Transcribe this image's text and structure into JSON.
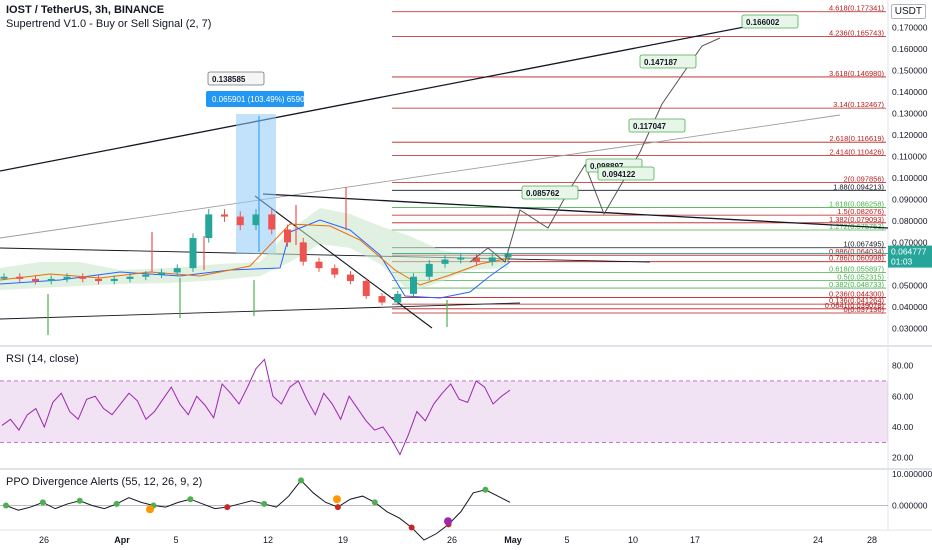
{
  "header": {
    "symbol": "IOST / TetherUS, 3h, BINANCE",
    "indicator": "Supertrend V1.0 - Buy or Sell Signal (2, 7)",
    "unit": "USDT",
    "rsi_title": "RSI (14, close)",
    "ppo_title": "PPO Divergence Alerts (55, 12, 26, 9, 2)"
  },
  "price_badge": {
    "price": "0.064777",
    "countdown": "01:03",
    "color": "#26a69a"
  },
  "measure_box": {
    "label": "0.065901 (103.49%) 65901",
    "color": "#2196f3"
  },
  "colors": {
    "fib_red": "#b71c1c",
    "fib_green": "#4caf50",
    "candle_up": "#26a69a",
    "candle_down": "#ef5350",
    "rsi": "#9c27b0",
    "rsi_band": "#e1bee7"
  },
  "chart_data": [
    {
      "type": "line",
      "title": "IOST / TetherUS, 3h, BINANCE",
      "x_ticks": [
        "26",
        "Apr",
        "5",
        "12",
        "19",
        "26",
        "May",
        "5",
        "10",
        "17",
        "24",
        "28"
      ],
      "y_ticks": [
        "0.170000",
        "0.160000",
        "0.150000",
        "0.140000",
        "0.130000",
        "0.120000",
        "0.110000",
        "0.100000",
        "0.090000",
        "0.080000",
        "0.070000",
        "0.050000",
        "0.040000",
        "0.030000"
      ],
      "ylim": [
        0.026,
        0.18
      ],
      "scale": "linear",
      "series": [
        {
          "values_approx": [
            0.054,
            0.053,
            0.052,
            0.053,
            0.054,
            0.053,
            0.052,
            0.053,
            0.054,
            0.055,
            0.056,
            0.058,
            0.072,
            0.083,
            0.082,
            0.078,
            0.083,
            0.076,
            0.07,
            0.061,
            0.058,
            0.055,
            0.052,
            0.045,
            0.042,
            0.046,
            0.054,
            0.06,
            0.062,
            0.063,
            0.061,
            0.063,
            0.0648
          ]
        }
      ],
      "fib_levels": [
        {
          "label": "4.618(0.177341)",
          "value": 0.177341,
          "color": "red"
        },
        {
          "label": "4.236(0.165743)",
          "value": 0.165743,
          "color": "red"
        },
        {
          "label": "3.618(0.146980)",
          "value": 0.14698,
          "color": "red"
        },
        {
          "label": "3.14(0.132467)",
          "value": 0.132467,
          "color": "red"
        },
        {
          "label": "2.618(0.116619)",
          "value": 0.116619,
          "color": "red"
        },
        {
          "label": "2.414(0.110426)",
          "value": 0.110426,
          "color": "red"
        },
        {
          "label": "2(0.097856)",
          "value": 0.097856,
          "color": "red"
        },
        {
          "label": "1.88(0.094213)",
          "value": 0.094213,
          "color": "black"
        },
        {
          "label": "1.618(0.086258)",
          "value": 0.086258,
          "color": "green"
        },
        {
          "label": "1.5(0.082676)",
          "value": 0.082676,
          "color": "red"
        },
        {
          "label": "1.382(0.079093)",
          "value": 0.079093,
          "color": "red"
        },
        {
          "label": "1.272(0.075753)",
          "value": 0.075753,
          "color": "green"
        },
        {
          "label": "1(0.067495)",
          "value": 0.067495,
          "color": "black"
        },
        {
          "label": "0.886(0.064034)",
          "value": 0.064034,
          "color": "red"
        },
        {
          "label": "0.786(0.060998)",
          "value": 0.060998,
          "color": "red"
        },
        {
          "label": "0.618(0.055897)",
          "value": 0.055897,
          "color": "green"
        },
        {
          "label": "0.5(0.052315)",
          "value": 0.052315,
          "color": "green"
        },
        {
          "label": "0.382(0.048733)",
          "value": 0.048733,
          "color": "green"
        },
        {
          "label": "0.236(0.044300)",
          "value": 0.0443,
          "color": "red"
        },
        {
          "label": "0.136(0.041264)",
          "value": 0.041264,
          "color": "red"
        },
        {
          "label": "0.0641(0.039078)",
          "value": 0.039078,
          "color": "red"
        },
        {
          "label": "0(0.037136)",
          "value": 0.037136,
          "color": "red"
        }
      ],
      "target_labels": [
        {
          "text": "0.166002",
          "value": 0.166002
        },
        {
          "text": "0.147187",
          "value": 0.147187
        },
        {
          "text": "0.117047",
          "value": 0.117047
        },
        {
          "text": "0.098897",
          "value": 0.098897
        },
        {
          "text": "0.094122",
          "value": 0.094122
        },
        {
          "text": "0.085762",
          "value": 0.085762
        },
        {
          "text": "0.138585",
          "value": 0.138585
        }
      ]
    },
    {
      "type": "line",
      "title": "RSI (14, close)",
      "y_ticks": [
        "80.00",
        "60.00",
        "40.00",
        "20.00"
      ],
      "ylim": [
        15,
        88
      ],
      "band": [
        30,
        70
      ],
      "values_approx": [
        41,
        45,
        38,
        48,
        52,
        40,
        56,
        62,
        50,
        45,
        58,
        60,
        52,
        48,
        55,
        62,
        57,
        45,
        50,
        58,
        66,
        55,
        48,
        60,
        54,
        46,
        68,
        62,
        55,
        66,
        78,
        84,
        60,
        55,
        66,
        70,
        58,
        48,
        62,
        55,
        45,
        60,
        52,
        44,
        38,
        40,
        32,
        22,
        35,
        50,
        44,
        55,
        62,
        68,
        58,
        56,
        70,
        66,
        55,
        60,
        64
      ]
    },
    {
      "type": "line",
      "title": "PPO Divergence Alerts (55, 12, 26, 9, 2)",
      "y_ticks": [
        "10.000000",
        "0.000000"
      ],
      "ylim": [
        -12,
        12
      ],
      "values_approx": [
        0,
        -1.5,
        -0.5,
        1,
        -1,
        0.5,
        1.5,
        0,
        -1,
        0.5,
        2.5,
        1,
        0,
        -0.5,
        1,
        2,
        0.5,
        -1,
        -0.5,
        0.5,
        1.5,
        0.5,
        -0.5,
        3,
        8,
        4,
        1,
        -0.5,
        2,
        3,
        1,
        -2,
        -4,
        -7,
        -11,
        -9,
        -6,
        -2,
        4,
        5,
        3,
        1
      ]
    }
  ]
}
